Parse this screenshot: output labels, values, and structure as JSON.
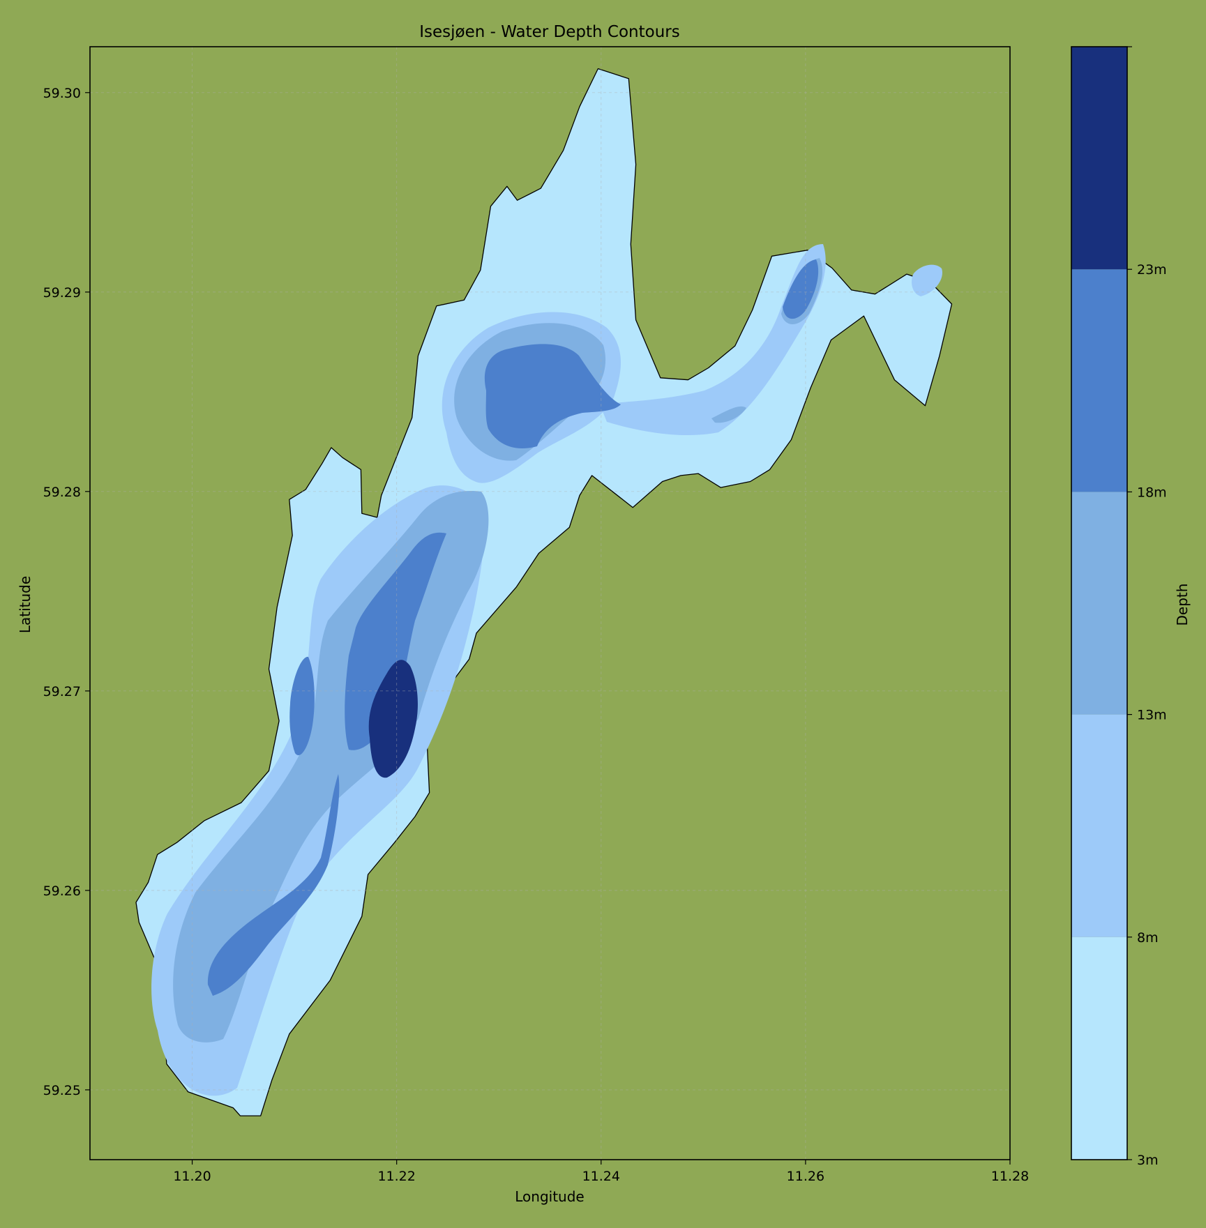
{
  "chart_data": {
    "type": "contour-map",
    "title": "Isesjøen - Water Depth Contours",
    "xlabel": "Longitude",
    "ylabel": "Latitude",
    "xlim": [
      11.19,
      11.28
    ],
    "ylim": [
      59.2465,
      59.3023
    ],
    "x_ticks": [
      "11.20",
      "11.22",
      "11.24",
      "11.26",
      "11.28"
    ],
    "x_tick_values": [
      11.2,
      11.22,
      11.24,
      11.26,
      11.28
    ],
    "y_ticks": [
      "59.25",
      "59.26",
      "59.27",
      "59.28",
      "59.29",
      "59.30"
    ],
    "y_tick_values": [
      59.25,
      59.26,
      59.27,
      59.28,
      59.29,
      59.3
    ],
    "grid": true,
    "colorbar": {
      "label": "Depth",
      "ticks": [
        "3m",
        "8m",
        "13m",
        "18m",
        "23m"
      ],
      "levels": [
        3,
        8,
        13,
        18,
        23,
        28
      ],
      "colors": [
        "#b6e6fd",
        "#9dcaf9",
        "#7fb0e2",
        "#4c80cc",
        "#18307d"
      ]
    },
    "land_color": "#8fa955",
    "background_color": "#8fa955",
    "depth_regions": [
      {
        "band": 0,
        "name": "shore-shallows",
        "points": [
          [
            11.204,
            59.2491
          ],
          [
            11.1996,
            59.2499
          ],
          [
            11.1975,
            59.2513
          ],
          [
            11.1972,
            59.2535
          ],
          [
            11.1963,
            59.2566
          ],
          [
            11.1948,
            59.2584
          ],
          [
            11.1945,
            59.2594
          ],
          [
            11.1957,
            59.2604
          ],
          [
            11.1966,
            59.2618
          ],
          [
            11.1985,
            59.2624
          ],
          [
            11.2012,
            59.2635
          ],
          [
            11.2048,
            59.2644
          ],
          [
            11.2075,
            59.266
          ],
          [
            11.2085,
            59.2685
          ],
          [
            11.2075,
            59.2711
          ],
          [
            11.2083,
            59.2742
          ],
          [
            11.2098,
            59.2778
          ],
          [
            11.2095,
            59.2796
          ],
          [
            11.2111,
            59.2801
          ],
          [
            11.2127,
            59.2814
          ],
          [
            11.2136,
            59.2822
          ],
          [
            11.2147,
            59.2817
          ],
          [
            11.2165,
            59.2811
          ],
          [
            11.2166,
            59.2789
          ],
          [
            11.2181,
            59.2787
          ],
          [
            11.2185,
            59.2798
          ],
          [
            11.2215,
            59.2837
          ],
          [
            11.2221,
            59.2868
          ],
          [
            11.2239,
            59.2893
          ],
          [
            11.2266,
            59.2896
          ],
          [
            11.2282,
            59.2911
          ],
          [
            11.2292,
            59.2943
          ],
          [
            11.2308,
            59.2953
          ],
          [
            11.2318,
            59.2946
          ],
          [
            11.2341,
            59.2952
          ],
          [
            11.2363,
            59.2971
          ],
          [
            11.2379,
            59.2993
          ],
          [
            11.2397,
            59.3012
          ],
          [
            11.2427,
            59.3007
          ],
          [
            11.2434,
            59.2964
          ],
          [
            11.2429,
            59.2924
          ],
          [
            11.2434,
            59.2886
          ],
          [
            11.2458,
            59.2857
          ],
          [
            11.2485,
            59.2856
          ],
          [
            11.2505,
            59.2862
          ],
          [
            11.2531,
            59.2873
          ],
          [
            11.2548,
            59.2891
          ],
          [
            11.2567,
            59.2918
          ],
          [
            11.2602,
            59.2921
          ],
          [
            11.2626,
            59.2912
          ],
          [
            11.2645,
            59.2901
          ],
          [
            11.2668,
            59.2899
          ],
          [
            11.2699,
            59.2909
          ],
          [
            11.2722,
            59.2905
          ],
          [
            11.2743,
            59.2894
          ],
          [
            11.2731,
            59.2868
          ],
          [
            11.2717,
            59.2843
          ],
          [
            11.2687,
            59.2856
          ],
          [
            11.2657,
            59.2888
          ],
          [
            11.2625,
            59.2876
          ],
          [
            11.2605,
            59.2852
          ],
          [
            11.2586,
            59.2826
          ],
          [
            11.2565,
            59.2811
          ],
          [
            11.2546,
            59.2805
          ],
          [
            11.2517,
            59.2802
          ],
          [
            11.2495,
            59.2809
          ],
          [
            11.2478,
            59.2808
          ],
          [
            11.246,
            59.2805
          ],
          [
            11.2431,
            59.2792
          ],
          [
            11.2391,
            59.2808
          ],
          [
            11.2379,
            59.2798
          ],
          [
            11.2369,
            59.2782
          ],
          [
            11.2339,
            59.2769
          ],
          [
            11.2317,
            59.2752
          ],
          [
            11.2278,
            59.2729
          ],
          [
            11.2271,
            59.2716
          ],
          [
            11.2255,
            59.2705
          ],
          [
            11.2229,
            59.2682
          ],
          [
            11.2232,
            59.2649
          ],
          [
            11.2218,
            59.2637
          ],
          [
            11.2198,
            59.2624
          ],
          [
            11.2172,
            59.2608
          ],
          [
            11.2166,
            59.2587
          ],
          [
            11.2135,
            59.2555
          ],
          [
            11.2095,
            59.2528
          ],
          [
            11.2078,
            59.2505
          ],
          [
            11.2067,
            59.2487
          ],
          [
            11.2047,
            59.2487
          ]
        ],
        "label": ""
      }
    ],
    "depth_zones": [
      {
        "band": 1,
        "name": "band-8m",
        "center": [
          11.2125,
          59.2605
        ],
        "shape": "main-channel"
      },
      {
        "band": 2,
        "name": "band-13m",
        "center": [
          11.2125,
          59.2625
        ],
        "shape": "main-channel"
      },
      {
        "band": 3,
        "name": "band-18m",
        "center": [
          11.2345,
          59.2845
        ],
        "shape": "north-basin"
      },
      {
        "band": 3,
        "name": "band-18m",
        "center": [
          11.2105,
          59.2585
        ],
        "shape": "south-basin"
      },
      {
        "band": 3,
        "name": "band-18m",
        "center": [
          11.2175,
          59.2705
        ],
        "shape": "central-trench"
      },
      {
        "band": 3,
        "name": "band-18m",
        "center": [
          11.2108,
          59.2693
        ],
        "shape": "west-pocket"
      },
      {
        "band": 4,
        "name": "band-23m",
        "center": [
          11.2198,
          59.2683
        ],
        "shape": "deep-hole"
      }
    ]
  }
}
